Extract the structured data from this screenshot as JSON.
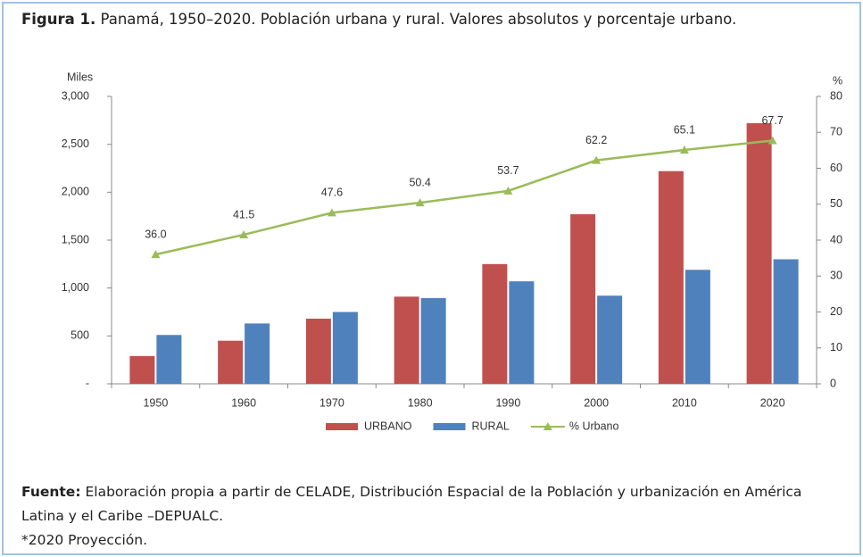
{
  "title_label": "Figura 1.",
  "title": "Panamá, 1950–2020. Población urbana y rural. Valores absolutos y porcentaje urbano.",
  "source_label": "Fuente:",
  "source": "Elaboración propia a partir de CELADE, Distribución Espacial de la Población y urbanización en América Latina y el Caribe –DEPUALC.",
  "note": "*2020 Proyección.",
  "chart_data": {
    "type": "bar",
    "ylabel": "Miles",
    "y2label": "%",
    "categories": [
      "1950",
      "1960",
      "1970",
      "1980",
      "1990",
      "2000",
      "2010",
      "2020"
    ],
    "series": [
      {
        "name": "URBANO",
        "color": "#c0504d",
        "values": [
          290,
          450,
          680,
          910,
          1250,
          1770,
          2220,
          2720
        ]
      },
      {
        "name": "RURAL",
        "color": "#4f81bd",
        "values": [
          510,
          630,
          750,
          895,
          1070,
          920,
          1190,
          1300
        ]
      },
      {
        "name": "% Urbano",
        "type": "line",
        "axis": "y2",
        "color": "#9bbb59",
        "values": [
          36,
          41.5,
          47.6,
          50.4,
          53.7,
          62.2,
          65.1,
          67.7
        ],
        "value_labels": [
          "36.0",
          "41.5",
          "47.6",
          "50.4",
          "53.7",
          "62.2",
          "65.1",
          "67.7"
        ]
      }
    ],
    "ylim": [
      0,
      3000
    ],
    "yticks": [
      {
        "value": 0,
        "label": "-"
      },
      500,
      {
        "value": 1000,
        "label": "1,000"
      },
      {
        "value": 1500,
        "label": "1,500"
      },
      {
        "value": 2000,
        "label": "2,000"
      },
      {
        "value": 2500,
        "label": "2,500"
      },
      {
        "value": 3000,
        "label": "3,000"
      }
    ],
    "y2lim": [
      0,
      80
    ],
    "y2ticks": [
      0,
      10,
      20,
      30,
      40,
      50,
      60,
      70,
      80
    ],
    "grid": false,
    "legend": "bottom"
  }
}
